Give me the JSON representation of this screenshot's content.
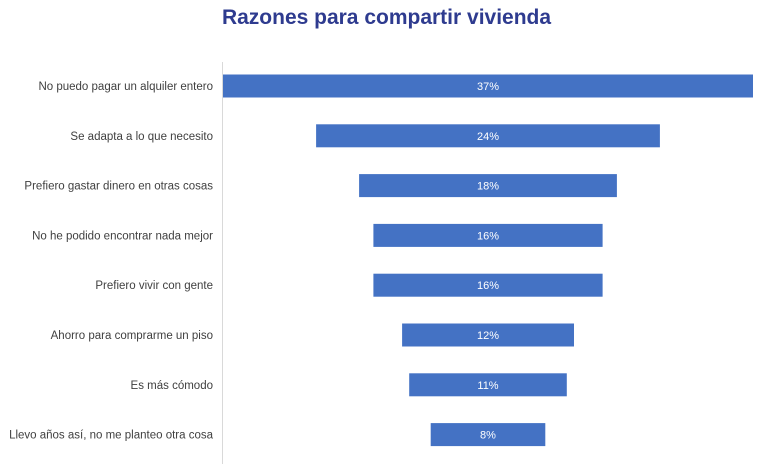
{
  "chart_data": {
    "type": "bar",
    "orientation": "horizontal",
    "style": "funnel",
    "title": "Razones para compartir vivienda",
    "categories": [
      "No puedo pagar un alquiler entero",
      "Se adapta a lo que necesito",
      "Prefiero gastar dinero en otras cosas",
      "No he podido encontrar nada mejor",
      "Prefiero vivir con gente",
      "Ahorro para comprarme un piso",
      "Es más cómodo",
      "Llevo años así, no me planteo otra cosa"
    ],
    "values": [
      37,
      24,
      18,
      16,
      16,
      12,
      11,
      8
    ],
    "data_labels": [
      "37%",
      "24%",
      "18%",
      "16%",
      "16%",
      "12%",
      "11%",
      "8%"
    ],
    "unit": "%",
    "legend": "none",
    "grid": false,
    "bar_color": "#4472c4"
  }
}
